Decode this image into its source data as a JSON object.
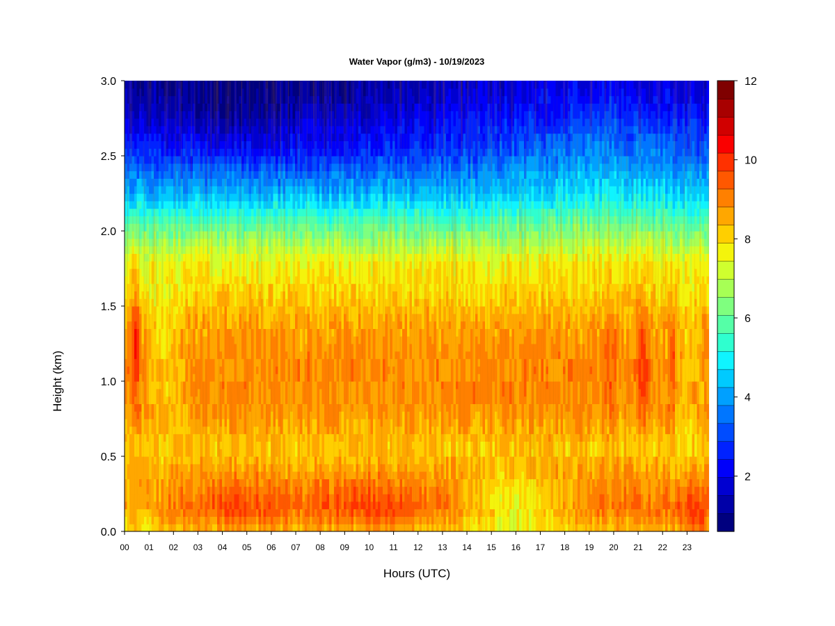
{
  "chart_data": {
    "type": "heatmap",
    "title": "Water Vapor (g/m3) - 10/19/2023",
    "xlabel": "Hours (UTC)",
    "ylabel": "Height (km)",
    "xlim": [
      0,
      23.9
    ],
    "ylim": [
      0,
      3.0
    ],
    "x_ticks": [
      0,
      1,
      2,
      3,
      4,
      5,
      6,
      7,
      8,
      9,
      10,
      11,
      12,
      13,
      14,
      15,
      16,
      17,
      18,
      19,
      20,
      21,
      22,
      23
    ],
    "x_tick_labels": [
      "00",
      "01",
      "02",
      "03",
      "04",
      "05",
      "06",
      "07",
      "08",
      "09",
      "10",
      "11",
      "12",
      "13",
      "14",
      "15",
      "16",
      "17",
      "18",
      "19",
      "20",
      "21",
      "22",
      "23"
    ],
    "y_ticks": [
      0.0,
      0.5,
      1.0,
      1.5,
      2.0,
      2.5,
      3.0
    ],
    "y_tick_labels": [
      "0.0",
      "0.5",
      "1.0",
      "1.5",
      "2.0",
      "2.5",
      "3.0"
    ],
    "colorbar": {
      "range": [
        0.6,
        12
      ],
      "tick_values": [
        2,
        4,
        6,
        8,
        10,
        12
      ],
      "tick_labels": [
        "2",
        "4",
        "6",
        "8",
        "10",
        "12"
      ],
      "levels": [
        "#00007f",
        "#0000a8",
        "#0000d1",
        "#0000fa",
        "#0022ff",
        "#004cff",
        "#0076ff",
        "#00a0ff",
        "#00caff",
        "#0ff4ff",
        "#2fffcf",
        "#55ffa7",
        "#7fff7f",
        "#a7ff55",
        "#cfff2f",
        "#f4f40c",
        "#ffcf00",
        "#ffa700",
        "#ff8000",
        "#ff5800",
        "#ff3100",
        "#fa0000",
        "#d10000",
        "#a80000",
        "#7f0000"
      ]
    },
    "height_profile_typical": [
      {
        "height_km": 0.0,
        "value": 8.3
      },
      {
        "height_km": 0.15,
        "value": 9.2
      },
      {
        "height_km": 0.3,
        "value": 8.9
      },
      {
        "height_km": 0.55,
        "value": 8.2
      },
      {
        "height_km": 0.8,
        "value": 8.8
      },
      {
        "height_km": 1.1,
        "value": 8.9
      },
      {
        "height_km": 1.4,
        "value": 8.6
      },
      {
        "height_km": 1.6,
        "value": 8.0
      },
      {
        "height_km": 1.8,
        "value": 7.6
      },
      {
        "height_km": 2.0,
        "value": 6.2
      },
      {
        "height_km": 2.2,
        "value": 4.6
      },
      {
        "height_km": 2.5,
        "value": 3.0
      },
      {
        "height_km": 2.8,
        "value": 2.0
      },
      {
        "height_km": 3.0,
        "value": 1.6
      }
    ]
  }
}
